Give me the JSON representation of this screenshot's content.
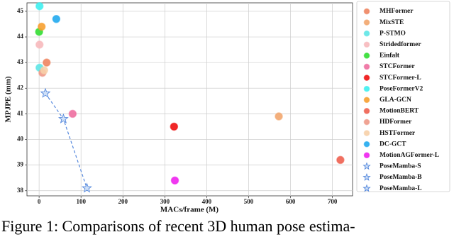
{
  "chart_data": {
    "type": "scatter",
    "xlabel": "MACs/frame (M)",
    "ylabel": "MPJPE (mm)",
    "xlim": [
      -29,
      748
    ],
    "ylim": [
      37.8,
      45.33
    ],
    "xticks": [
      0,
      100,
      200,
      300,
      400,
      500,
      600,
      700
    ],
    "yticks": [
      38,
      39,
      40,
      41,
      42,
      43,
      44,
      45
    ],
    "grid": true,
    "legend": "right",
    "series": [
      {
        "name": "MHFormer",
        "color": "#ee8560",
        "marker": "circle",
        "x": [
          18
        ],
        "values": [
          43.0
        ]
      },
      {
        "name": "MixSTE",
        "color": "#f2a66e",
        "marker": "circle",
        "x": [
          572
        ],
        "values": [
          40.9
        ]
      },
      {
        "name": "P-STMO",
        "color": "#5fe6e6",
        "marker": "circle",
        "x": [
          1
        ],
        "values": [
          42.8
        ]
      },
      {
        "name": "Stridedformer",
        "color": "#f7b9bd",
        "marker": "circle",
        "x": [
          1
        ],
        "values": [
          43.7
        ]
      },
      {
        "name": "Einfalt",
        "color": "#33dd33",
        "marker": "circle",
        "x": [
          0
        ],
        "values": [
          44.2
        ]
      },
      {
        "name": "STCFormer",
        "color": "#ee6fa0",
        "marker": "circle",
        "x": [
          80
        ],
        "values": [
          41.0
        ]
      },
      {
        "name": "STCFormer-L",
        "color": "#ee1111",
        "marker": "circle",
        "x": [
          322
        ],
        "values": [
          40.5
        ]
      },
      {
        "name": "PoseFormerV2",
        "color": "#3ff0f0",
        "marker": "circle",
        "x": [
          1
        ],
        "values": [
          45.2
        ]
      },
      {
        "name": "GLA-GCN",
        "color": "#f7a030",
        "marker": "circle",
        "x": [
          6
        ],
        "values": [
          44.4
        ]
      },
      {
        "name": "MotionBERT",
        "color": "#ee6050",
        "marker": "circle",
        "x": [
          719
        ],
        "values": [
          39.2
        ]
      },
      {
        "name": "HDFormer",
        "color": "#ee9a88",
        "marker": "circle",
        "x": [
          8
        ],
        "values": [
          42.6
        ]
      },
      {
        "name": "HSTFormer",
        "color": "#f7d0a8",
        "marker": "circle",
        "x": [
          12
        ],
        "values": [
          42.7
        ]
      },
      {
        "name": "DC-GCT",
        "color": "#22aaee",
        "marker": "circle",
        "x": [
          41
        ],
        "values": [
          44.7
        ]
      },
      {
        "name": "MotionAGFormer-L",
        "color": "#ee22ee",
        "marker": "circle",
        "x": [
          324
        ],
        "values": [
          38.4
        ]
      },
      {
        "name": "PoseMamba-S",
        "color": "#5588dd",
        "marker": "star",
        "x": [
          15
        ],
        "values": [
          41.8
        ]
      },
      {
        "name": "PoseMamba-B",
        "color": "#5588dd",
        "marker": "star",
        "x": [
          58
        ],
        "values": [
          40.8
        ]
      },
      {
        "name": "PoseMamba-L",
        "color": "#5588dd",
        "marker": "star",
        "x": [
          114
        ],
        "values": [
          38.1
        ]
      }
    ]
  },
  "caption": "Figure 1: Comparisons of recent 3D human pose estima-"
}
